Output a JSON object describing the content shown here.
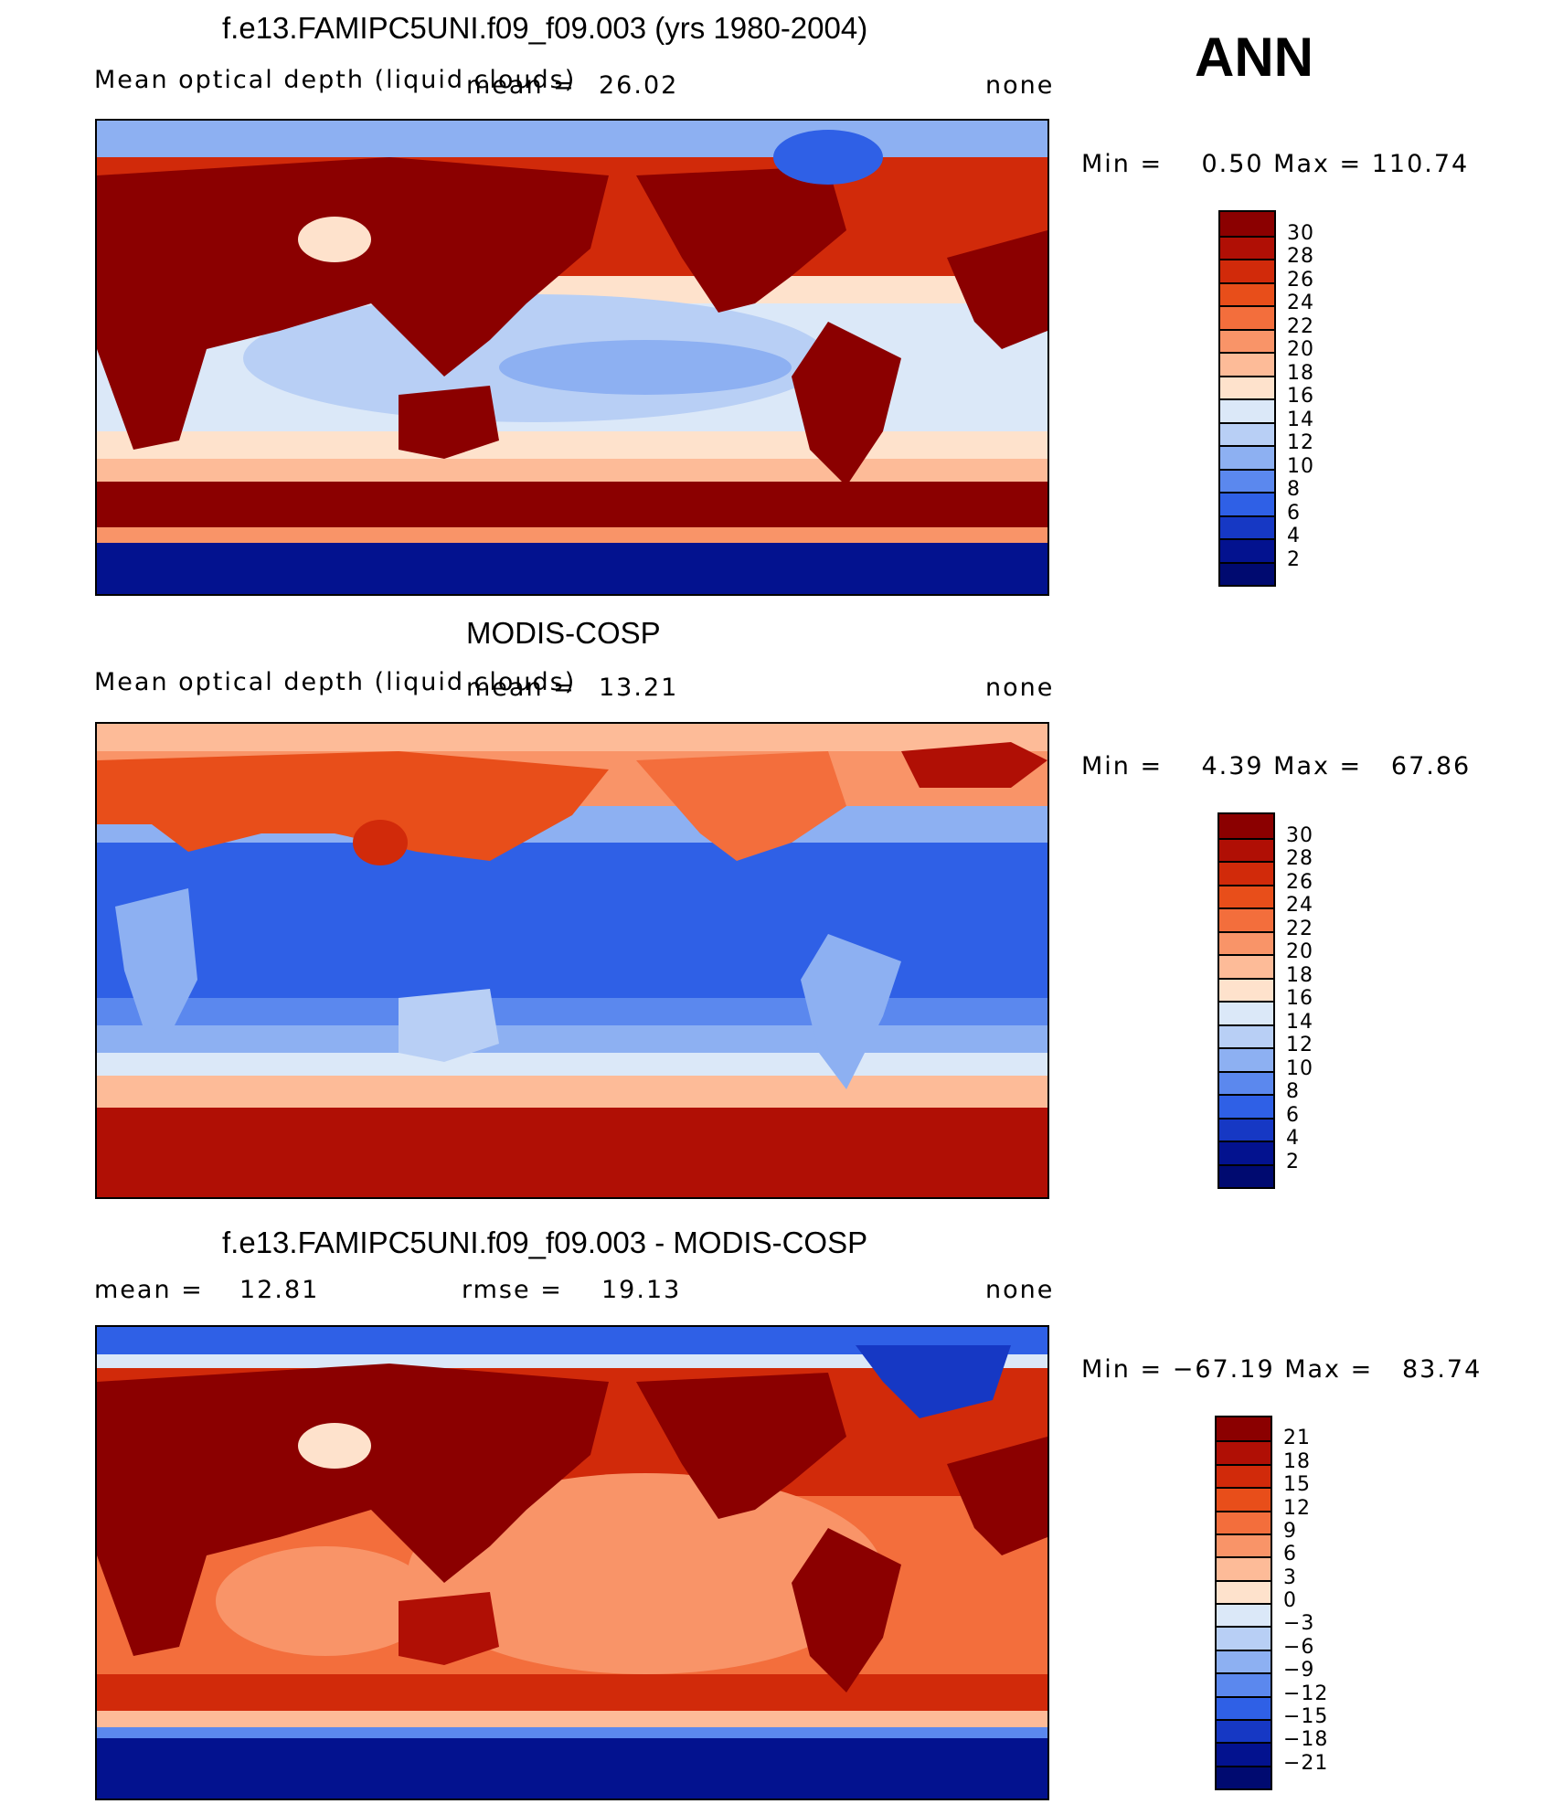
{
  "season": "ANN",
  "panels": [
    {
      "title": "f.e13.FAMIPC5UNI.f09_f09.003 (yrs 1980-2004)",
      "variable": "Mean optical depth (liquid clouds)",
      "mean_label": "mean =",
      "mean_value": "26.02",
      "units": "none",
      "minmax": "Min =    0.50 Max = 110.74",
      "colorbar_labels": [
        "30",
        "28",
        "26",
        "24",
        "22",
        "20",
        "18",
        "16",
        "14",
        "12",
        "10",
        "8",
        "6",
        "4",
        "2"
      ],
      "colorbar_colors": [
        "#8b0000",
        "#b00f05",
        "#d12a0a",
        "#e84e1a",
        "#f36e3c",
        "#f99468",
        "#fdbb98",
        "#fee2cc",
        "#dbe8f8",
        "#b8cff5",
        "#8db0f2",
        "#5b88ee",
        "#2f60e6",
        "#1638c4",
        "#03128f",
        "#000a70"
      ],
      "chart_data": {
        "type": "heatmap",
        "title": "f.e13.FAMIPC5UNI.f09_f09.003 (yrs 1980-2004)",
        "subtitle": "Mean optical depth (liquid clouds)",
        "mean": 26.02,
        "min": 0.5,
        "max": 110.74,
        "units": "none",
        "colorbar_levels": [
          2,
          4,
          6,
          8,
          10,
          12,
          14,
          16,
          18,
          20,
          22,
          24,
          26,
          28,
          30
        ]
      }
    },
    {
      "title": "MODIS-COSP",
      "variable": "Mean optical depth (liquid clouds)",
      "mean_label": "mean =",
      "mean_value": "13.21",
      "units": "none",
      "minmax": "Min =    4.39 Max =   67.86",
      "colorbar_labels": [
        "30",
        "28",
        "26",
        "24",
        "22",
        "20",
        "18",
        "16",
        "14",
        "12",
        "10",
        "8",
        "6",
        "4",
        "2"
      ],
      "colorbar_colors": [
        "#8b0000",
        "#b00f05",
        "#d12a0a",
        "#e84e1a",
        "#f36e3c",
        "#f99468",
        "#fdbb98",
        "#fee2cc",
        "#dbe8f8",
        "#b8cff5",
        "#8db0f2",
        "#5b88ee",
        "#2f60e6",
        "#1638c4",
        "#03128f",
        "#000a70"
      ],
      "chart_data": {
        "type": "heatmap",
        "title": "MODIS-COSP",
        "subtitle": "Mean optical depth (liquid clouds)",
        "mean": 13.21,
        "min": 4.39,
        "max": 67.86,
        "units": "none",
        "colorbar_levels": [
          2,
          4,
          6,
          8,
          10,
          12,
          14,
          16,
          18,
          20,
          22,
          24,
          26,
          28,
          30
        ]
      }
    },
    {
      "title": "f.e13.FAMIPC5UNI.f09_f09.003 - MODIS-COSP",
      "mean_label": "mean =",
      "mean_value": "12.81",
      "rmse_label": "rmse =",
      "rmse_value": "19.13",
      "units": "none",
      "minmax": "Min = −67.19 Max =   83.74",
      "colorbar_labels": [
        "21",
        "18",
        "15",
        "12",
        "9",
        "6",
        "3",
        "0",
        "−3",
        "−6",
        "−9",
        "−12",
        "−15",
        "−18",
        "−21"
      ],
      "colorbar_colors": [
        "#8b0000",
        "#b00f05",
        "#d12a0a",
        "#e84e1a",
        "#f36e3c",
        "#f99468",
        "#fdbb98",
        "#fee2cc",
        "#dbe8f8",
        "#b8cff5",
        "#8db0f2",
        "#5b88ee",
        "#2f60e6",
        "#1638c4",
        "#03128f",
        "#000a70"
      ],
      "chart_data": {
        "type": "heatmap",
        "title": "f.e13.FAMIPC5UNI.f09_f09.003 - MODIS-COSP",
        "mean": 12.81,
        "rmse": 19.13,
        "min": -67.19,
        "max": 83.74,
        "units": "none",
        "colorbar_levels": [
          -21,
          -18,
          -15,
          -12,
          -9,
          -6,
          -3,
          0,
          3,
          6,
          9,
          12,
          15,
          18,
          21
        ]
      }
    }
  ]
}
